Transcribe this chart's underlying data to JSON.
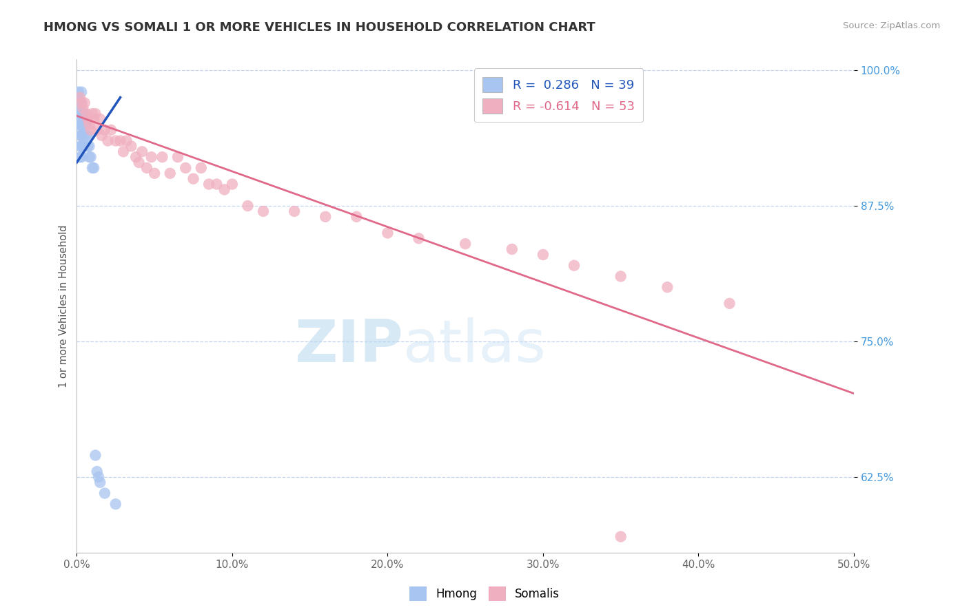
{
  "title": "HMONG VS SOMALI 1 OR MORE VEHICLES IN HOUSEHOLD CORRELATION CHART",
  "source_text": "Source: ZipAtlas.com",
  "ylabel": "1 or more Vehicles in Household",
  "xmin": 0.0,
  "xmax": 0.5,
  "ymin": 0.555,
  "ymax": 1.01,
  "xtick_vals": [
    0.0,
    0.1,
    0.2,
    0.3,
    0.4,
    0.5
  ],
  "ytick_vals": [
    0.625,
    0.75,
    0.875,
    1.0
  ],
  "ytick_labels": [
    "62.5%",
    "75.0%",
    "87.5%",
    "100.0%"
  ],
  "hmong_R": 0.286,
  "hmong_N": 39,
  "somali_R": -0.614,
  "somali_N": 53,
  "hmong_color": "#a8c4f0",
  "somali_color": "#f0afc0",
  "hmong_line_color": "#2255bb",
  "somali_line_color": "#e06888",
  "watermark_zip": "ZIP",
  "watermark_atlas": "atlas",
  "background_color": "#ffffff",
  "grid_color": "#c0d4ee",
  "hmong_x": [
    0.001,
    0.001,
    0.001,
    0.001,
    0.002,
    0.002,
    0.002,
    0.002,
    0.002,
    0.002,
    0.003,
    0.003,
    0.003,
    0.003,
    0.003,
    0.003,
    0.003,
    0.004,
    0.004,
    0.004,
    0.004,
    0.005,
    0.005,
    0.005,
    0.006,
    0.006,
    0.007,
    0.007,
    0.008,
    0.008,
    0.009,
    0.01,
    0.011,
    0.012,
    0.013,
    0.014,
    0.015,
    0.018,
    0.025
  ],
  "hmong_y": [
    0.98,
    0.97,
    0.96,
    0.95,
    0.97,
    0.96,
    0.95,
    0.94,
    0.93,
    0.92,
    0.98,
    0.97,
    0.96,
    0.95,
    0.94,
    0.93,
    0.92,
    0.96,
    0.95,
    0.94,
    0.93,
    0.96,
    0.95,
    0.93,
    0.95,
    0.94,
    0.94,
    0.93,
    0.93,
    0.92,
    0.92,
    0.91,
    0.91,
    0.645,
    0.63,
    0.625,
    0.62,
    0.61,
    0.6
  ],
  "somali_x": [
    0.002,
    0.003,
    0.004,
    0.005,
    0.006,
    0.007,
    0.008,
    0.009,
    0.01,
    0.011,
    0.012,
    0.013,
    0.015,
    0.016,
    0.018,
    0.02,
    0.022,
    0.025,
    0.028,
    0.03,
    0.032,
    0.035,
    0.038,
    0.04,
    0.042,
    0.045,
    0.048,
    0.05,
    0.055,
    0.06,
    0.065,
    0.07,
    0.075,
    0.08,
    0.085,
    0.09,
    0.095,
    0.1,
    0.11,
    0.12,
    0.14,
    0.16,
    0.18,
    0.2,
    0.22,
    0.25,
    0.28,
    0.3,
    0.32,
    0.35,
    0.38,
    0.42,
    0.35
  ],
  "somali_y": [
    0.975,
    0.97,
    0.965,
    0.97,
    0.96,
    0.955,
    0.95,
    0.945,
    0.96,
    0.955,
    0.96,
    0.945,
    0.955,
    0.94,
    0.945,
    0.935,
    0.945,
    0.935,
    0.935,
    0.925,
    0.935,
    0.93,
    0.92,
    0.915,
    0.925,
    0.91,
    0.92,
    0.905,
    0.92,
    0.905,
    0.92,
    0.91,
    0.9,
    0.91,
    0.895,
    0.895,
    0.89,
    0.895,
    0.875,
    0.87,
    0.87,
    0.865,
    0.865,
    0.85,
    0.845,
    0.84,
    0.835,
    0.83,
    0.82,
    0.81,
    0.8,
    0.785,
    0.57
  ],
  "somali_line_x0": 0.0,
  "somali_line_x1": 0.5,
  "somali_line_y0": 0.958,
  "somali_line_y1": 0.702,
  "hmong_line_x0": 0.0,
  "hmong_line_x1": 0.028,
  "hmong_line_y0": 0.915,
  "hmong_line_y1": 0.975
}
